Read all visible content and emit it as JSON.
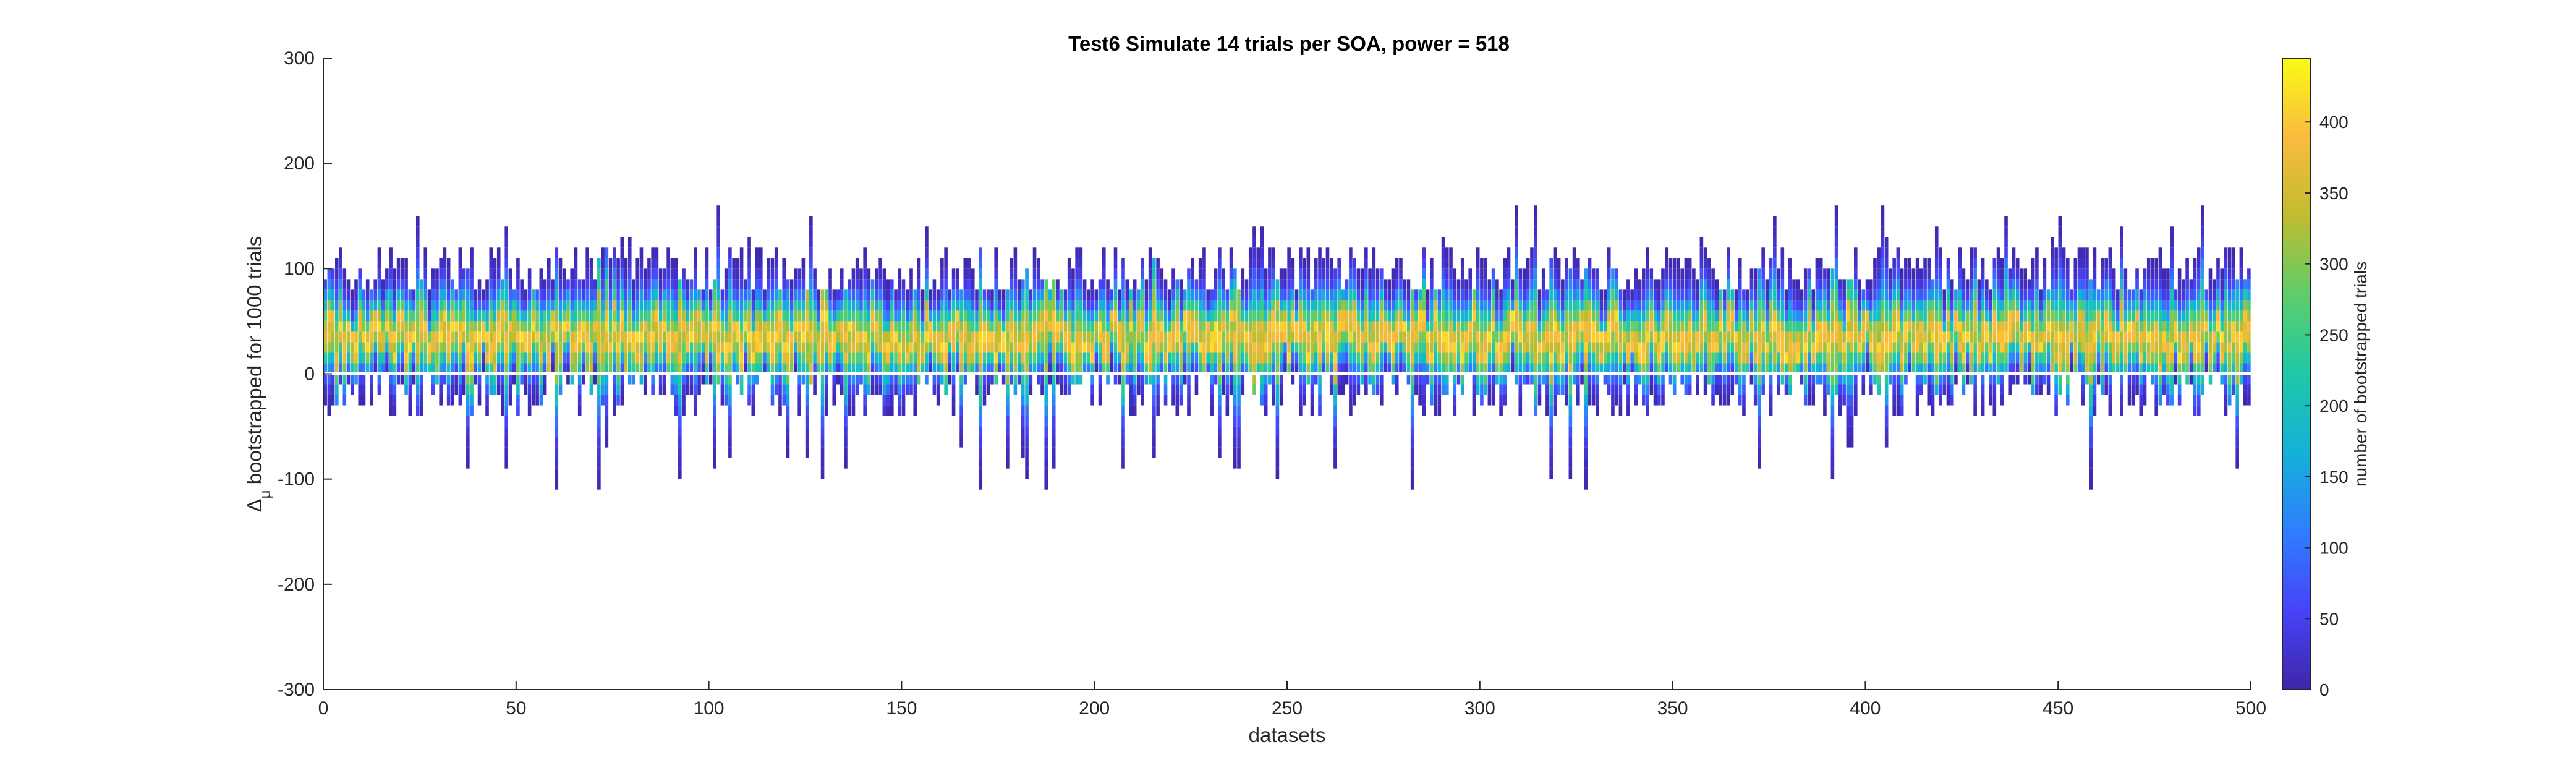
{
  "chart_data": {
    "type": "heatmap",
    "title": "Test6 Simulate 14 trials per SOA, power = 518",
    "xlabel": "datasets",
    "ylabel_symbol": "Δ",
    "ylabel_subscript": "μ",
    "ylabel_text": "bootstrapped for 1000 trials",
    "xlim": [
      0,
      500
    ],
    "ylim": [
      -300,
      300
    ],
    "x_ticks": [
      "0",
      "50",
      "100",
      "150",
      "200",
      "250",
      "300",
      "350",
      "400",
      "450",
      "500"
    ],
    "y_ticks": [
      "300",
      "200",
      "100",
      "0",
      "-100",
      "-200",
      "-300"
    ],
    "dataset_count": 500,
    "bin_width": 10,
    "central_range": [
      20,
      50
    ],
    "typical_range": [
      -40,
      120
    ],
    "extreme_range": [
      -105,
      158
    ],
    "colorbar": {
      "label": "number of bootstrapped trials",
      "range": [
        0,
        445
      ],
      "ticks": [
        "0",
        "50",
        "100",
        "150",
        "200",
        "250",
        "300",
        "350",
        "400"
      ],
      "colormap": [
        "#3e26a8",
        "#4743f8",
        "#2f7efe",
        "#14b1d9",
        "#1fc8a8",
        "#5ecd6a",
        "#c0bc30",
        "#fbbb3e",
        "#f9fb15"
      ]
    }
  }
}
